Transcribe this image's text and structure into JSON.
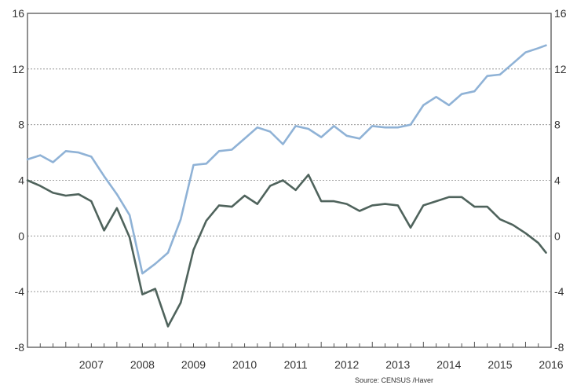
{
  "chart_data": {
    "type": "line",
    "title": "",
    "xlabel": "",
    "ylabel": "",
    "ylim": [
      -8,
      16
    ],
    "yticks": [
      16,
      12,
      8,
      4,
      0,
      -4,
      -8
    ],
    "xlim": [
      2006.25,
      2016.5
    ],
    "xtick_labels": [
      "2007",
      "2008",
      "2009",
      "2010",
      "2011",
      "2012",
      "2013",
      "2014",
      "2015",
      "2016"
    ],
    "grid": "horizontal-dashed",
    "source": "Source:  CENSUS /Haver",
    "series": [
      {
        "color": "#8fb2d6",
        "x": [
          2006.25,
          2006.5,
          2006.75,
          2007.0,
          2007.25,
          2007.5,
          2007.75,
          2008.0,
          2008.25,
          2008.5,
          2008.75,
          2009.0,
          2009.25,
          2009.5,
          2009.75,
          2010.0,
          2010.25,
          2010.5,
          2010.75,
          2011.0,
          2011.25,
          2011.5,
          2011.75,
          2012.0,
          2012.25,
          2012.5,
          2012.75,
          2013.0,
          2013.25,
          2013.5,
          2013.75,
          2014.0,
          2014.25,
          2014.5,
          2014.75,
          2015.0,
          2015.25,
          2015.5,
          2015.75,
          2016.0,
          2016.25,
          2016.4
        ],
        "y": [
          5.5,
          5.8,
          5.3,
          6.1,
          6.0,
          5.7,
          4.3,
          3.0,
          1.5,
          -2.7,
          -2.0,
          -1.2,
          1.2,
          5.1,
          5.2,
          6.1,
          6.2,
          7.0,
          7.8,
          7.5,
          6.6,
          7.9,
          7.7,
          7.1,
          7.9,
          7.2,
          7.0,
          7.9,
          7.8,
          7.8,
          8.0,
          9.4,
          10.0,
          9.4,
          10.2,
          10.4,
          11.5,
          11.6,
          12.4,
          13.2,
          13.5,
          13.7
        ]
      },
      {
        "color": "#4f635c",
        "x": [
          2006.25,
          2006.5,
          2006.75,
          2007.0,
          2007.25,
          2007.5,
          2007.75,
          2008.0,
          2008.25,
          2008.5,
          2008.75,
          2009.0,
          2009.25,
          2009.5,
          2009.75,
          2010.0,
          2010.25,
          2010.5,
          2010.75,
          2011.0,
          2011.25,
          2011.5,
          2011.75,
          2012.0,
          2012.25,
          2012.5,
          2012.75,
          2013.0,
          2013.25,
          2013.5,
          2013.75,
          2014.0,
          2014.25,
          2014.5,
          2014.75,
          2015.0,
          2015.25,
          2015.5,
          2015.75,
          2016.0,
          2016.25,
          2016.4
        ],
        "y": [
          4.0,
          3.6,
          3.1,
          2.9,
          3.0,
          2.5,
          0.4,
          2.0,
          -0.1,
          -4.2,
          -3.8,
          -6.5,
          -4.8,
          -1.0,
          1.1,
          2.2,
          2.1,
          2.9,
          2.3,
          3.6,
          4.0,
          3.3,
          4.4,
          2.5,
          2.5,
          2.3,
          1.8,
          2.2,
          2.3,
          2.2,
          0.6,
          2.2,
          2.5,
          2.8,
          2.8,
          2.1,
          2.1,
          1.2,
          0.8,
          0.2,
          -0.5,
          -1.2
        ]
      }
    ]
  }
}
